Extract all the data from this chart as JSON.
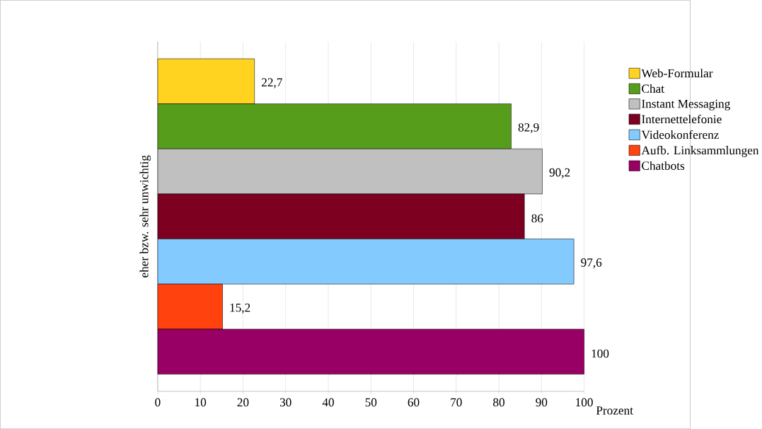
{
  "chart_data": {
    "type": "bar",
    "orientation": "horizontal",
    "categories": [
      "eher bzw. sehr unwichtig"
    ],
    "xlabel": "Prozent",
    "xlim": [
      0,
      100
    ],
    "xticks": [
      0,
      10,
      20,
      30,
      40,
      50,
      60,
      70,
      80,
      90,
      100
    ],
    "grid": "x",
    "legend": "right",
    "series": [
      {
        "name": "Web-Formular",
        "color": "#ffd320",
        "values": [
          22.7
        ],
        "value_labels": [
          "22,7"
        ]
      },
      {
        "name": "Chat",
        "color": "#579d1c",
        "values": [
          82.9
        ],
        "value_labels": [
          "82,9"
        ]
      },
      {
        "name": "Instant Messaging",
        "color": "#c0c0c0",
        "values": [
          90.2
        ],
        "value_labels": [
          "90,2"
        ]
      },
      {
        "name": "Internettelefonie",
        "color": "#7e0021",
        "values": [
          86
        ],
        "value_labels": [
          "86"
        ]
      },
      {
        "name": "Videokonferenz",
        "color": "#83caff",
        "values": [
          97.6
        ],
        "value_labels": [
          "97,6"
        ]
      },
      {
        "name": "Aufb. Linksammlungen",
        "color": "#ff420e",
        "values": [
          15.2
        ],
        "value_labels": [
          "15,2"
        ]
      },
      {
        "name": "Chatbots",
        "color": "#990066",
        "values": [
          100
        ],
        "value_labels": [
          "100"
        ]
      }
    ]
  }
}
